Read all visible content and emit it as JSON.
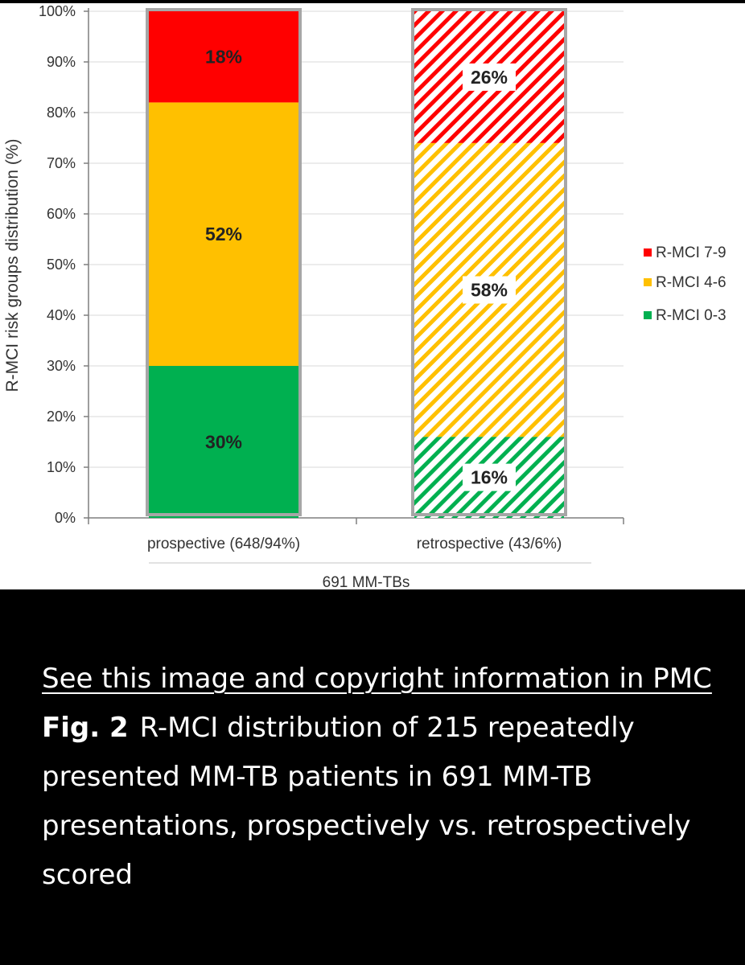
{
  "chart_data": {
    "type": "bar",
    "stacked": true,
    "ylabel": "R-MCI risk groups distribution (%)",
    "ylim": [
      0,
      100
    ],
    "y_ticks": [
      "0%",
      "10%",
      "20%",
      "30%",
      "40%",
      "50%",
      "60%",
      "70%",
      "80%",
      "90%",
      "100%"
    ],
    "categories": [
      "prospective (648/94%)",
      "retrospective (43/6%)"
    ],
    "group_label": "691 MM-TBs",
    "grid": true,
    "legend_position": "right",
    "series": [
      {
        "name": "R-MCI 0-3",
        "color": "#00b050",
        "values": [
          30,
          16
        ],
        "labels": [
          "30%",
          "16%"
        ]
      },
      {
        "name": "R-MCI 4-6",
        "color": "#ffc000",
        "values": [
          52,
          58
        ],
        "labels": [
          "52%",
          "58%"
        ]
      },
      {
        "name": "R-MCI 7-9",
        "color": "#ff0000",
        "values": [
          18,
          26
        ],
        "labels": [
          "18%",
          "26%"
        ]
      }
    ],
    "legend_order": [
      "R-MCI 7-9",
      "R-MCI 4-6",
      "R-MCI 0-3"
    ],
    "hatched_categories": [
      "retrospective (43/6%)"
    ]
  },
  "caption": {
    "link_text": "See this image and copyright information in PMC",
    "figure_label": "Fig. 2",
    "figure_text": "R-MCI distribution of 215 repeatedly presented MM-TB patients in 691 MM-TB presentations, prospectively vs. retrospectively scored"
  }
}
